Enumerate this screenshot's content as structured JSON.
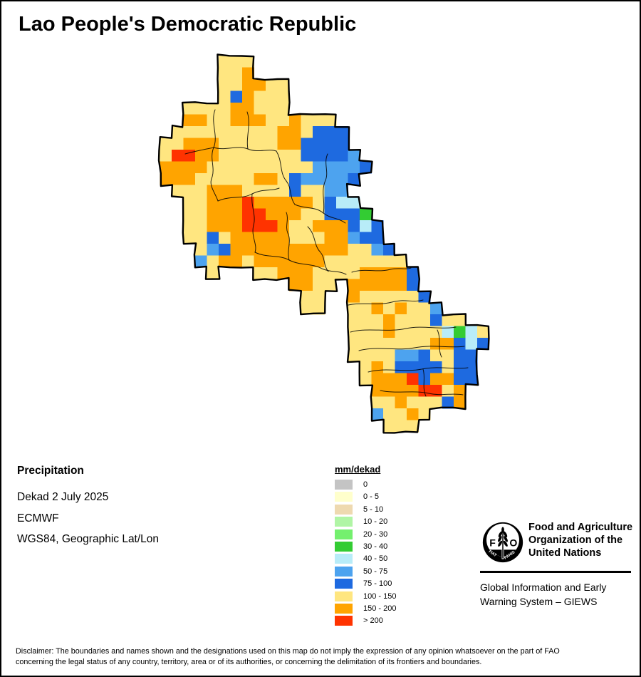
{
  "title": "Lao People's Democratic Republic",
  "info": {
    "product": "Precipitation",
    "dekad": "Dekad 2 July 2025",
    "source": "ECMWF",
    "projection": "WGS84, Geographic Lat/Lon"
  },
  "legend": {
    "title": "mm/dekad",
    "items": [
      {
        "label": "0",
        "color": "#c4c4c4"
      },
      {
        "label": "0 - 5",
        "color": "#ffffcc"
      },
      {
        "label": "5 - 10",
        "color": "#eed9b0"
      },
      {
        "label": "10 - 20",
        "color": "#b0f5a5"
      },
      {
        "label": "20 - 30",
        "color": "#74f06e"
      },
      {
        "label": "30 - 40",
        "color": "#33cc33"
      },
      {
        "label": "40 - 50",
        "color": "#b8ecf8"
      },
      {
        "label": "50 - 75",
        "color": "#4da3ef"
      },
      {
        "label": "75 - 100",
        "color": "#1e6ae0"
      },
      {
        "label": "100 - 150",
        "color": "#ffe680"
      },
      {
        "label": "150 - 200",
        "color": "#ffa400"
      },
      {
        "label": "> 200",
        "color": "#ff3300"
      }
    ]
  },
  "map_data": {
    "type": "gridded-precipitation-map",
    "region": "Lao People's Democratic Republic",
    "units": "mm/dekad",
    "cell_colors": {
      "G": "#ffe680",
      "O": "#ffa400",
      "R": "#ff3300",
      "B": "#1e6ae0",
      "L": "#4da3ef",
      "C": "#b8ecf8",
      "N": "#33cc33"
    },
    "cell_values": {
      "G": "100 - 150",
      "O": "150 - 200",
      "R": "> 200",
      "B": "75 - 100",
      "L": "50 - 75",
      "C": "40 - 50",
      "N": "30 - 40"
    },
    "grid": [
      "......GGG.....................",
      "......GGO.....................",
      "......GGOOGG..................",
      "......GBOGGG..................",
      "...GGGGOOGGG..................",
      "...OOGGOOOGGOGGG..............",
      "..GGGGGGGGGOOGBBB.............",
      ".GGOOOGGGGGOOBBBB.............",
      ".GRROOGGGGGGGBBBBL............",
      ".OOOOGGGGGGGGGLLLLB...........",
      ".OOOGGGGGOOGBLLLLB............",
      "..GGGOOOGGGGBGGLL.............",
      "...GGOOOROOOOOGBCC............",
      "...GGOOORROOOGGBBBN...........",
      "...GGOOORRROGGOOOBCB..........",
      "...GGBGOOOOOGGGOOLBB..........",
      "....GLBOOOOOOOOOOGGLB.........",
      "....LGOOGOOOOOOGGGGGGG........",
      ".....G...GGOOOGGGGOOOOB.......",
      "............OOGG.OOOOOB.......",
      ".............GG..OGGGGGB......",
      ".............GG..GGOGOGGL.....",
      ".................GGGOGGGBGG...",
      ".................GGGOGGGGCNCG.",
      ".................GGGGGGGOOBCB.",
      ".................GGGGLLBGGBB..",
      "..................GOGBBBBGBB..",
      "..................GOOORBOOBB..",
      "...................OOOORRGO...",
      "...................GGOGGGBO...",
      "...................LGGOG......",
      "....................GGG......."
    ]
  },
  "org": {
    "emblem_text": "FAO",
    "motto_left": "FIAT",
    "motto_right": "PANIS",
    "name_lines": [
      "Food and Agriculture",
      "Organization of the",
      "United Nations"
    ],
    "giews_lines": [
      "Global Information and Early",
      "Warning System – GIEWS"
    ]
  },
  "disclaimer": {
    "line1": "Disclaimer: The boundaries and names shown and the designations used on this map do not imply the expression of any opinion whatsoever on the part of FAO",
    "line2": "concerning the legal status of any country, territory, area or of its authorities, or concerning the delimitation of its frontiers and boundaries."
  }
}
